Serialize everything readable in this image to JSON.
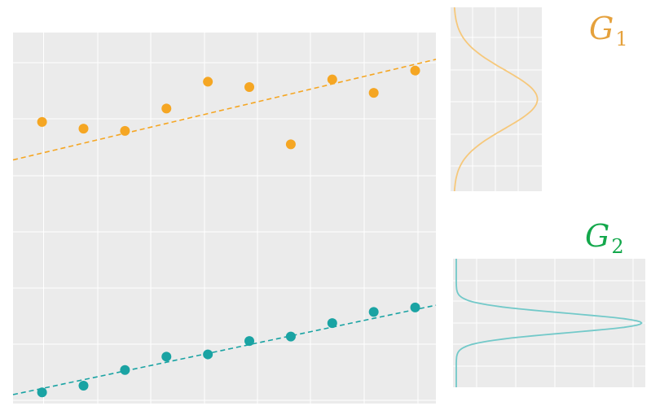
{
  "colors": {
    "panel_bg": "#ebebeb",
    "grid": "#ffffff",
    "group1": "#f5a623",
    "group1_density": "#f6c87b",
    "group2": "#1aa3a3",
    "group2_density": "#72c9c9",
    "label1": "#e5a13c",
    "label2": "#14a84c"
  },
  "groups": [
    {
      "name_main": "G",
      "name_sub": "1"
    },
    {
      "name_main": "G",
      "name_sub": "2"
    }
  ],
  "chart_data": [
    {
      "type": "scatter",
      "title": "",
      "xlabel": "",
      "ylabel": "",
      "xlim": [
        0.3,
        10.5
      ],
      "ylim": [
        0.0,
        8.3
      ],
      "grid": true,
      "series": [
        {
          "color": "#f5a623",
          "x": [
            1,
            2,
            3,
            4,
            5,
            6,
            7,
            8,
            9,
            10
          ],
          "y": [
            6.3,
            6.15,
            6.1,
            6.6,
            7.2,
            7.08,
            5.8,
            7.25,
            6.95,
            7.45
          ],
          "trend": {
            "x": [
              0.3,
              10.5
            ],
            "y": [
              5.45,
              7.7
            ]
          }
        },
        {
          "color": "#1aa3a3",
          "x": [
            1,
            2,
            3,
            4,
            5,
            6,
            7,
            8,
            9,
            10
          ],
          "y": [
            0.25,
            0.4,
            0.75,
            1.05,
            1.1,
            1.4,
            1.5,
            1.8,
            2.05,
            2.15
          ],
          "trend": {
            "x": [
              0.3,
              10.5
            ],
            "y": [
              0.2,
              2.2
            ]
          }
        }
      ]
    },
    {
      "type": "line",
      "title": "",
      "xlabel": "",
      "ylabel": "",
      "xlim": [
        0,
        1
      ],
      "ylim": [
        0,
        1
      ],
      "grid": true,
      "series": [
        {
          "color": "#f6c87b",
          "mean": 0.5,
          "sd": 0.16,
          "peak": 0.95
        }
      ]
    },
    {
      "type": "line",
      "title": "",
      "xlabel": "",
      "ylabel": "",
      "xlim": [
        0,
        1
      ],
      "ylim": [
        0,
        1
      ],
      "grid": true,
      "series": [
        {
          "color": "#72c9c9",
          "mean": 0.5,
          "sd": 0.075,
          "peak": 0.98
        }
      ]
    }
  ]
}
